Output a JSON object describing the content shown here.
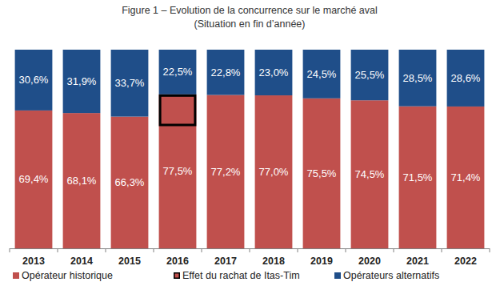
{
  "chart_data": {
    "type": "bar",
    "title": "Figure 1 – Evolution de la concurrence sur le marché aval",
    "subtitle": "(Situation en fin d’année)",
    "categories": [
      "2013",
      "2014",
      "2015",
      "2016",
      "2017",
      "2018",
      "2019",
      "2020",
      "2021",
      "2022"
    ],
    "series": [
      {
        "name": "Opérateur historique",
        "color": "#c0504d",
        "values": [
          69.4,
          68.1,
          66.3,
          77.5,
          77.2,
          77.0,
          75.5,
          74.5,
          71.5,
          71.4
        ],
        "value_labels": [
          "69,4%",
          "68,1%",
          "66,3%",
          "77,5%",
          "77,2%",
          "77,0%",
          "75,5%",
          "74,5%",
          "71,5%",
          "71,4%"
        ]
      },
      {
        "name": "Opérateurs alternatifs",
        "color": "#1f4e89",
        "values": [
          30.6,
          31.9,
          33.7,
          22.5,
          22.8,
          23.0,
          24.5,
          25.5,
          28.5,
          28.6
        ],
        "value_labels": [
          "30,6%",
          "31,9%",
          "33,7%",
          "22,5%",
          "22,8%",
          "23,0%",
          "24,5%",
          "25,5%",
          "28,5%",
          "28,6%"
        ]
      }
    ],
    "annotations": [
      {
        "text": "Effet du rachat de Itas-Tim",
        "category": "2016",
        "range": [
          61.5,
          77.5
        ],
        "color": "#000000"
      }
    ],
    "ylim": [
      0,
      100
    ],
    "yticks": [],
    "stacked": true,
    "data_labels": true,
    "tick_labels": "x",
    "grid": false,
    "legend": "bottom"
  }
}
